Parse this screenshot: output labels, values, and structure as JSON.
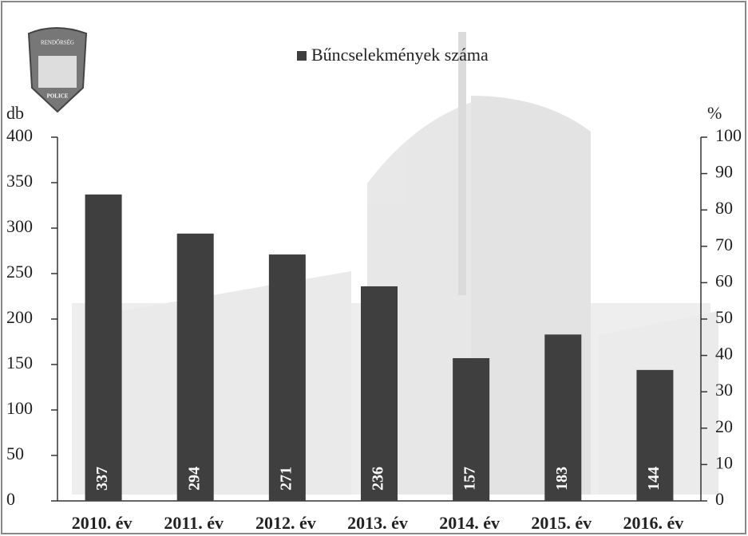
{
  "chart_data": {
    "type": "bar",
    "legend": "Bűncselekmények száma",
    "badge_texts": [
      "RENDŐRSÉG",
      "POLICE"
    ],
    "ylabel": "db",
    "y2label": "%",
    "categories": [
      "2010. év",
      "2011. év",
      "2012. év",
      "2013. év",
      "2014. év",
      "2015. év",
      "2016. év"
    ],
    "values": [
      337,
      294,
      271,
      236,
      157,
      183,
      144
    ],
    "color": "#3f3f3f",
    "ylim": [
      0,
      400
    ],
    "yticks": [
      0,
      50,
      100,
      150,
      200,
      250,
      300,
      350,
      400
    ],
    "y2lim": [
      0,
      100
    ],
    "y2ticks": [
      0,
      10,
      20,
      30,
      40,
      50,
      60,
      70,
      80,
      90,
      100
    ],
    "grid": false
  }
}
